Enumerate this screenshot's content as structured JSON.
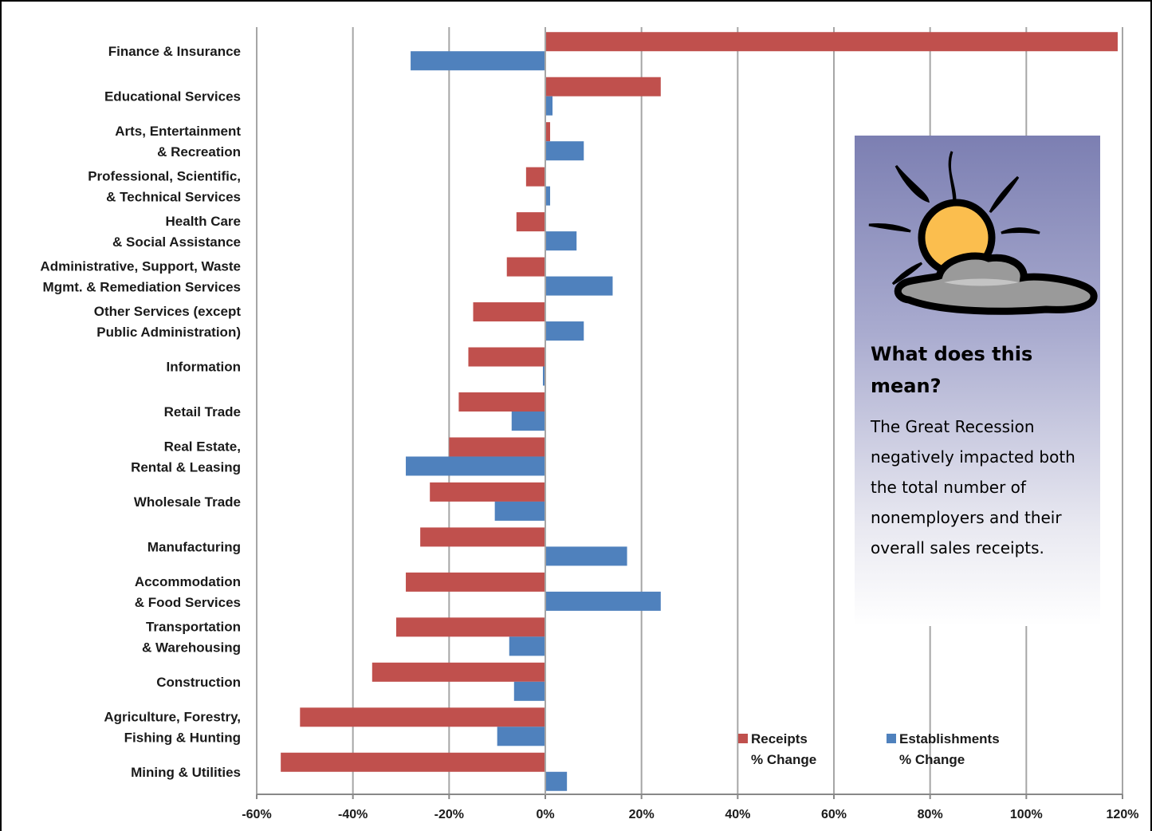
{
  "chart_data": {
    "type": "bar",
    "orientation": "horizontal",
    "categories": [
      "Finance & Insurance",
      "Educational Services",
      "Arts, Entertainment\n& Recreation",
      "Professional, Scientific,\n& Technical Services",
      "Health Care\n& Social Assistance",
      "Administrative, Support, Waste\nMgmt. & Remediation Services",
      "Other Services (except\nPublic Administration)",
      "Information",
      "Retail Trade",
      "Real Estate,\nRental & Leasing",
      "Wholesale Trade",
      "Manufacturing",
      "Accommodation\n& Food Services",
      "Transportation\n& Warehousing",
      "Construction",
      "Agriculture, Forestry,\nFishing & Hunting",
      "Mining & Utilities"
    ],
    "series": [
      {
        "name": "Receipts\n% Change",
        "color": "#c0504d",
        "values": [
          119,
          24,
          1,
          -4,
          -6,
          -8,
          -15,
          -16,
          -18,
          -20,
          -24,
          -26,
          -29,
          -31,
          -36,
          -51,
          -55
        ]
      },
      {
        "name": "Establishments\n% Change",
        "color": "#4f81bd",
        "values": [
          -28,
          1.5,
          8,
          1,
          6.5,
          14,
          8,
          -0.5,
          -7,
          -29,
          -10.5,
          17,
          24,
          -7.5,
          -6.5,
          -10,
          4.5
        ]
      }
    ],
    "x_ticks": [
      "-60%",
      "-40%",
      "-20%",
      "0%",
      "20%",
      "40%",
      "60%",
      "80%",
      "100%",
      "120%"
    ],
    "xlim": [
      -60,
      120
    ],
    "grid": true,
    "legend_position": "bottom-right"
  },
  "info_box": {
    "title": "What does this mean?",
    "body": "The Great Recession negatively impacted both the total number of nonemployers and their overall sales receipts.",
    "icon": "sun-behind-cloud-icon"
  },
  "colors": {
    "receipts": "#c0504d",
    "establishments": "#4f81bd",
    "gridline": "#a6a6a6"
  }
}
